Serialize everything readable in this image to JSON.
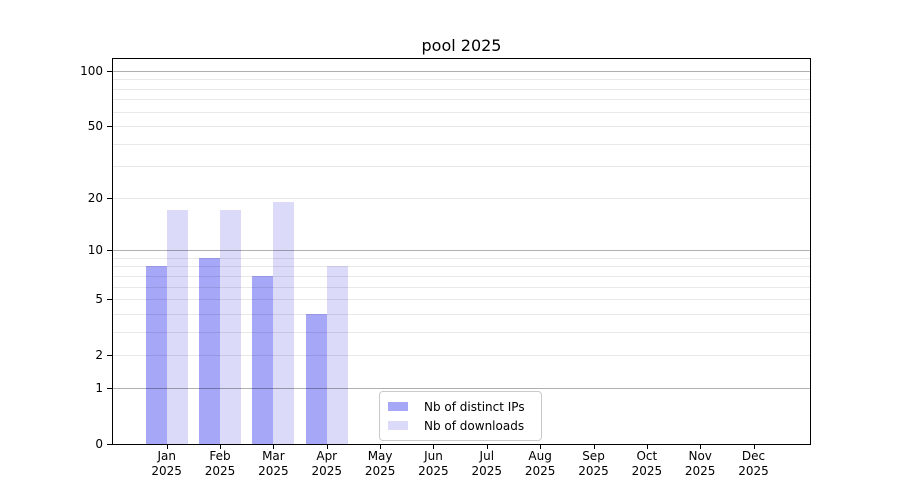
{
  "title": "pool 2025",
  "chart_data": {
    "type": "bar",
    "title": "pool 2025",
    "categories": [
      "Jan",
      "Feb",
      "Mar",
      "Apr",
      "May",
      "Jun",
      "Jul",
      "Aug",
      "Sep",
      "Oct",
      "Nov",
      "Dec"
    ],
    "year_label": "2025",
    "series": [
      {
        "name": "Nb of distinct IPs",
        "color": "#a7a7f8",
        "values": [
          8,
          9,
          7,
          4,
          0,
          0,
          0,
          0,
          0,
          0,
          0,
          0
        ]
      },
      {
        "name": "Nb of downloads",
        "color": "#dbdbf9",
        "values": [
          17,
          17,
          19,
          8,
          0,
          0,
          0,
          0,
          0,
          0,
          0,
          0
        ]
      }
    ],
    "xlabel": "",
    "ylabel": "",
    "yscale": "log10(value+1)",
    "ylim": [
      0,
      116
    ],
    "yticks": [
      0,
      1,
      2,
      5,
      10,
      20,
      50,
      100
    ],
    "major_gridlines": [
      1,
      10,
      100
    ],
    "minor_gridlines": [
      2,
      3,
      4,
      5,
      6,
      7,
      8,
      9,
      20,
      30,
      40,
      50,
      60,
      70,
      80,
      90
    ],
    "grid": true,
    "legend_position": "lower center-right inside plot"
  }
}
